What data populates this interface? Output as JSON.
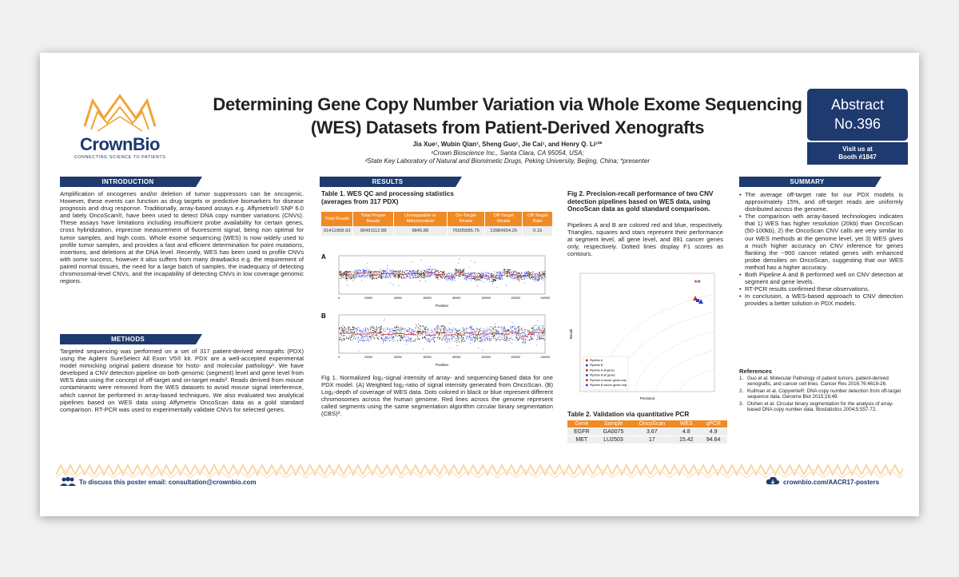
{
  "brand": {
    "name": "CrownBio",
    "tagline": "CONNECTING SCIENCE TO PATIENTS"
  },
  "title": {
    "line1": "Determining Gene Copy Number Variation via Whole Exome Sequencing",
    "line2": "(WES) Datasets from Patient-Derived Xenografts"
  },
  "authors": {
    "names": "Jia Xue¹, Wubin Qian¹, Sheng Guo¹, Jie Cai¹, and Henry Q. Li¹²*",
    "aff1": "¹Crown Bioscience Inc., Santa Clara, CA 95054, USA;",
    "aff2": "²State Key Laboratory of Natural and Biomimetic Drugs, Peking University, Beijing, China; *presenter"
  },
  "abstract": {
    "line1": "Abstract",
    "line2": "No.396"
  },
  "booth": {
    "line1": "Visit us at",
    "line2": "Booth #1847"
  },
  "sections": {
    "introduction": "INTRODUCTION",
    "methods": "METHODS",
    "results": "RESULTS",
    "summary": "SUMMARY"
  },
  "introduction_text": "Amplification of oncogenes and/or deletion of tumor suppressors can be oncogenic. However, these events can function as drug targets or predictive biomarkers for disease prognosis and drug response. Traditionally, array-based assays e.g. Affymetrix® SNP 6.0 and lately OncoScan®, have been used to detect DNA copy number variations (CNVs). These assays have limitations including insufficient probe availability for certain genes, cross hybridization, imprecise measurement of fluorescent signal, being non optimal for tumor samples, and high costs. Whole exome sequencing (WES) is now widely used to profile tumor samples, and provides a fast and efficient determination for point mutations, insertions, and deletions at the DNA level. Recently, WES has been used to profile CNVs with some success, however it also suffers from many drawbacks e.g. the requirement of paired normal tissues, the need for a large batch of samples, the inadequacy of detecting chromosomal-level CNVs, and the incapability of detecting CNVs in low coverage genomic regions.",
  "methods_text": "Targeted sequencing was performed on a set of 317 patient-derived xenografts (PDX) using the Agilent SureSelect All Exon V5® kit. PDX are a well-accepted experimental model mimicking original patient disease for histo- and molecular pathology¹. We have developed a CNV detection pipeline on both genomic (segment) level and gene level from WES data using the concept of off-target and on-target reads². Reads derived from mouse contaminants were removed from the WES datasets to avoid mouse signal interference, which cannot be performed in array-based techniques. We also evaluated two analytical pipelines based on WES data using Affymetrix OncoScan data as a gold standard comparison. RT-PCR was used to experimentally validate CNVs for selected genes.",
  "table1": {
    "caption1": "Table 1. WES QC and processing statistics",
    "caption2": "(averages from 317 PDX)",
    "headers": [
      "Total Reads",
      "Total Proper Reads",
      "Unmappable or Mitochondrial",
      "On-Target Reads",
      "Off-Target Reads",
      "Off-Target Rate"
    ],
    "row": [
      "91411958.93",
      "90491112.88",
      "9845.88",
      "76505585.75",
      "13984954.25",
      "0.15"
    ]
  },
  "fig1": {
    "label_a": "A",
    "label_b": "B",
    "xlabel": "Position",
    "xticks": [
      "0",
      "20000",
      "40000",
      "60000",
      "80000",
      "100000",
      "120000",
      "140000"
    ],
    "caption": "Fig 1. Normalized log₂-signal intensity of array- and sequencing-based data for one PDX model. (A) Weighted log₂-ratio of signal intensity generated from OncoScan. (B) Log₂-depth of coverage of WES data. Dots colored in black or blue represent different chromosomes across the human genome. Red lines across the genome represent called segments using the same segmentation algorithm circular binary segmentation (CBS)³."
  },
  "fig2": {
    "caption": "Fig 2. Precision-recall performance of two CNV detection pipelines based on WES data, using OncoScan data as gold standard comparison.",
    "text": "Pipelines A and B are colored red and blue, respectively. Triangles, squares and stars represent their performance at segment level, all gene level, and 891 cancer genes only, respectively. Dotted lines display F1 scores as contours.",
    "xlabel": "Precision",
    "ylabel": "Recall",
    "legend": [
      "Pipeline A",
      "Pipeline B",
      "Pipeline A all genes",
      "Pipeline B all genes",
      "Pipeline A cancer genes only",
      "Pipeline B cancer genes only"
    ]
  },
  "table2": {
    "caption": "Table 2. Validation via quantitative PCR",
    "headers": [
      "Gene",
      "Sample",
      "OncoScan",
      "WES",
      "qPCR"
    ],
    "rows": [
      [
        "EGFR",
        "GA0075",
        "3.67",
        "4.8",
        "4.9"
      ],
      [
        "MET",
        "LU2503",
        "17",
        "15.42",
        "94.64"
      ]
    ]
  },
  "summary_items": [
    "The average off-target rate for our PDX models is approximately 15%, and off-target reads are uniformly distributed across the genome.",
    "The comparison with array-based technologies indicates that 1) WES has higher resolution (20kb) than OncoScan (50-100kb), 2) the OncoScan CNV calls are very similar to our WES methods at the genome level, yet 3) WES gives a much higher accuracy on CNV inference for genes flanking the ~900 cancer related genes with enhanced probe densities on OncoScan, suggesting that our WES method has a higher accuracy.",
    "Both Pipeline A and B performed well on CNV detection at segment and gene levels.",
    "RT-PCR results confirmed these observations.",
    "In conclusion, a WES-based approach to CNV detection provides a better solution in PDX models."
  ],
  "references": {
    "title": "References",
    "items": [
      {
        "n": "1.",
        "text": "Guo et al. Molecular Pathology of patient tumors, patient-derived xenografts, and cancer cell lines. Cancer Res 2016;76:4619-26."
      },
      {
        "n": "2.",
        "text": "Kuilman et al. CopywriteR: DNA copy number detection from off-target sequence data. Genome Biol 2015;16:49."
      },
      {
        "n": "3.",
        "text": "Olshen et al. Circular binary segmentation for the analysis of array-based DNA copy number data. Biostatistics 2004;5:557-72."
      }
    ]
  },
  "footer": {
    "contact": "To discuss this poster email: consultation@crownbio.com",
    "url": "crownbio.com/AACR17-posters"
  },
  "colors": {
    "navy": "#1e3a6e",
    "orange": "#f08a24",
    "pipeline_a": "#d62728",
    "pipeline_b": "#2a3fd1"
  }
}
